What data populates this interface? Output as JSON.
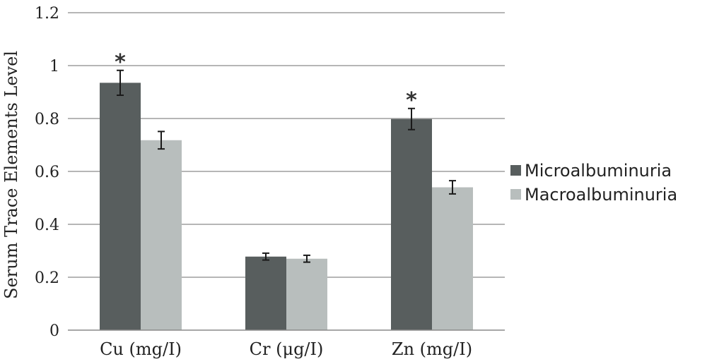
{
  "chart_data": {
    "type": "bar",
    "categories": [
      "Cu (mg/I)",
      "Cr (μg/I)",
      "Zn (mg/I)"
    ],
    "series": [
      {
        "name": "Microalbuminuria",
        "values": [
          0.935,
          0.278,
          0.798
        ],
        "errors": [
          0.047,
          0.013,
          0.04
        ],
        "color": "#585e5e"
      },
      {
        "name": "Macroalbuminuria",
        "values": [
          0.718,
          0.27,
          0.54
        ],
        "errors": [
          0.033,
          0.013,
          0.025
        ],
        "color": "#b8bebd"
      }
    ],
    "annotations": [
      {
        "category_index": 0,
        "series_index": 0,
        "text": "*"
      },
      {
        "category_index": 2,
        "series_index": 0,
        "text": "*"
      }
    ],
    "ylabel": "Serum Trace Elements Level",
    "xlabel": "",
    "ylim": [
      0,
      1.2
    ],
    "yticks": [
      "0",
      "0.2",
      "0.4",
      "0.6",
      "0.8",
      "1",
      "1.2"
    ],
    "grid": true,
    "legend_position": "right"
  }
}
